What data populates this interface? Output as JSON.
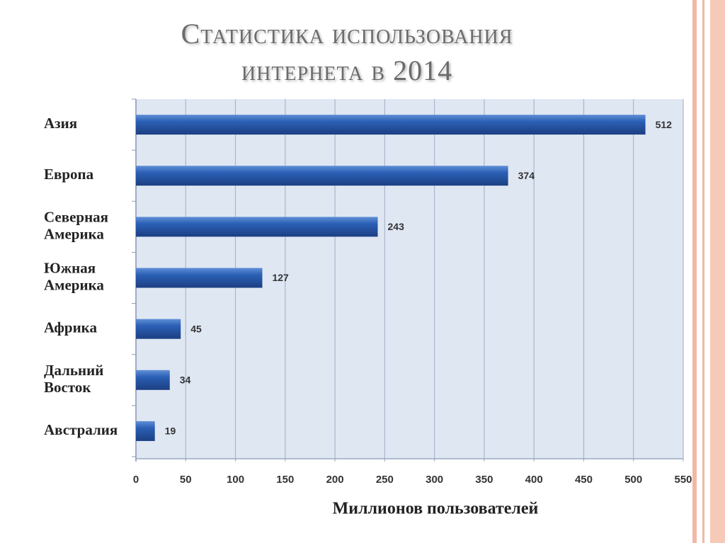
{
  "chart_data": {
    "type": "barh",
    "title": "Статистика использования интернета в 2014",
    "categories": [
      "Азия",
      "Европа",
      "Северная Америка",
      "Южная Америка",
      "Африка",
      "Дальний Восток",
      "Австралия"
    ],
    "values": [
      512,
      374,
      243,
      127,
      45,
      34,
      19
    ],
    "xlabel": "Миллионов пользователей",
    "xlim": [
      0,
      550
    ],
    "xticks": [
      0,
      50,
      100,
      150,
      200,
      250,
      300,
      350,
      400,
      450,
      500,
      550
    ],
    "grid": true,
    "color": "#2b5fb4"
  }
}
